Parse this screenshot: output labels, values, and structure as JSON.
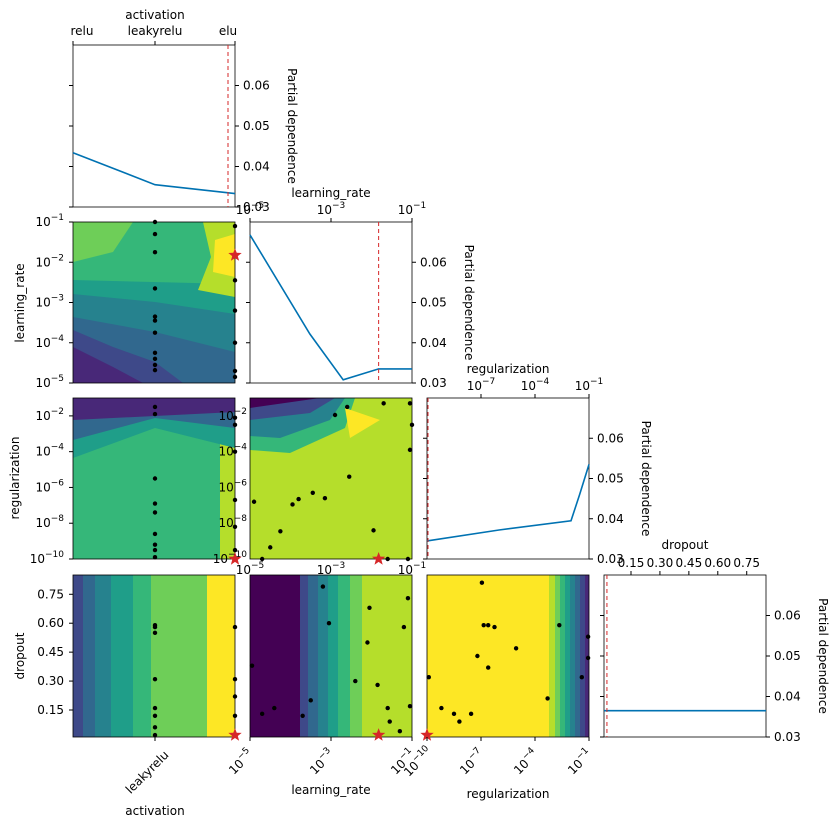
{
  "chart_data": {
    "type": "partial-dependence-matrix",
    "dimensions": [
      "activation",
      "learning_rate",
      "regularization",
      "dropout"
    ],
    "pd_label": "Partial dependence",
    "pd_ticks": [
      "0.03",
      "0.04",
      "0.05",
      "0.06"
    ],
    "pd_ylim": [
      0.03,
      0.07
    ],
    "activation_ticks": [
      "relu",
      "leakyrelu",
      "elu"
    ],
    "lr_tick_labels": [
      "10−5",
      "10−3",
      "10−1"
    ],
    "reg_tick_labels": [
      "10−10",
      "10−7",
      "10−4",
      "10−1"
    ],
    "reg_row_ticks": [
      "10−10",
      "10−8",
      "10−6",
      "10−4",
      "10−2"
    ],
    "lr_row_ticks": [
      "10−5",
      "10−4",
      "10−3",
      "10−2",
      "10−1"
    ],
    "dropout_ticks": [
      "0.15",
      "0.30",
      "0.45",
      "0.60",
      "0.75"
    ],
    "best": {
      "activation": "elu",
      "learning_rate": 0.015,
      "regularization": 1e-10,
      "dropout": 0.02
    },
    "diagonal": [
      {
        "dimension": "activation",
        "x": [
          0,
          1,
          2
        ],
        "y": [
          0.0434,
          0.0355,
          0.0333
        ]
      },
      {
        "dimension": "learning_rate",
        "x": [
          1e-05,
          0.0003,
          0.002,
          0.015,
          0.1
        ],
        "y": [
          0.0668,
          0.0422,
          0.0308,
          0.0335,
          0.0335
        ]
      },
      {
        "dimension": "regularization",
        "x": [
          1e-10,
          1e-06,
          0.01,
          0.03,
          0.1
        ],
        "y": [
          0.0345,
          0.0372,
          0.0395,
          0.046,
          0.0535
        ]
      },
      {
        "dimension": "dropout",
        "x": [
          0.01,
          0.85
        ],
        "y": [
          0.0365,
          0.0365
        ]
      }
    ],
    "samples": {
      "act_lr": [
        [
          1,
          -1
        ],
        [
          1,
          -1.3
        ],
        [
          1,
          -1.75
        ],
        [
          1,
          -2.65
        ],
        [
          1,
          -3.35
        ],
        [
          1,
          -3.45
        ],
        [
          1,
          -3.75
        ],
        [
          1,
          -4.25
        ],
        [
          1,
          -4.4
        ],
        [
          1,
          -4.55
        ],
        [
          1,
          -4.68
        ],
        [
          2,
          -1.1
        ],
        [
          2,
          -2.45
        ],
        [
          2,
          -3.2
        ],
        [
          2,
          -4.0
        ],
        [
          2,
          -4.7
        ],
        [
          2,
          -4.85
        ]
      ],
      "act_reg": [
        [
          1,
          -1.5
        ],
        [
          1,
          -1.9
        ],
        [
          1,
          -5.5
        ],
        [
          1,
          -6.9
        ],
        [
          1,
          -7.4
        ],
        [
          1,
          -8.6
        ],
        [
          1,
          -9.2
        ],
        [
          1,
          -9.5
        ],
        [
          1,
          -9.9
        ],
        [
          2,
          -2.1
        ],
        [
          2,
          -2.5
        ],
        [
          2,
          -4.0
        ],
        [
          2,
          -6.7
        ],
        [
          2,
          -8.2
        ],
        [
          2,
          -9.5
        ]
      ],
      "lr_reg": [
        [
          -2.9,
          -1.95
        ],
        [
          -2.6,
          -1.5
        ],
        [
          -1.7,
          -1.3
        ],
        [
          -1.05,
          -1.3
        ],
        [
          -1.0,
          -2.5
        ],
        [
          -2.55,
          -5.4
        ],
        [
          -3.45,
          -6.3
        ],
        [
          -3.8,
          -6.65
        ],
        [
          -3.95,
          -6.95
        ],
        [
          -3.15,
          -6.6
        ],
        [
          -4.25,
          -8.45
        ],
        [
          -4.5,
          -9.35
        ],
        [
          -4.7,
          -10.0
        ],
        [
          -4.9,
          -6.8
        ],
        [
          -1.05,
          -3.9
        ],
        [
          -1.95,
          -8.4
        ],
        [
          -1.6,
          -10.0
        ],
        [
          -1.1,
          -10.0
        ]
      ],
      "act_drop": [
        [
          1,
          0.55
        ],
        [
          1,
          0.58
        ],
        [
          1,
          0.59
        ],
        [
          1,
          0.31
        ],
        [
          1,
          0.16
        ],
        [
          1,
          0.12
        ],
        [
          1,
          0.06
        ],
        [
          1,
          0.02
        ],
        [
          2,
          0.58
        ],
        [
          2,
          0.31
        ],
        [
          2,
          0.22
        ],
        [
          2,
          0.12
        ],
        [
          2,
          0.02
        ]
      ],
      "lr_drop": [
        [
          -4.95,
          0.38
        ],
        [
          -4.7,
          0.13
        ],
        [
          -4.4,
          0.16
        ],
        [
          -3.7,
          0.12
        ],
        [
          -3.5,
          0.2
        ],
        [
          -3.2,
          0.79
        ],
        [
          -3.05,
          0.6
        ],
        [
          -2.4,
          0.3
        ],
        [
          -2.1,
          0.5
        ],
        [
          -2.05,
          0.68
        ],
        [
          -1.85,
          0.28
        ],
        [
          -1.6,
          0.16
        ],
        [
          -1.55,
          0.09
        ],
        [
          -1.2,
          0.58
        ],
        [
          -1.05,
          0.17
        ],
        [
          -1.1,
          0.73
        ],
        [
          -1.3,
          0.04
        ]
      ],
      "reg_drop": [
        [
          -9.9,
          0.32
        ],
        [
          -9.2,
          0.16
        ],
        [
          -8.5,
          0.13
        ],
        [
          -8.2,
          0.09
        ],
        [
          -7.55,
          0.13
        ],
        [
          -7.2,
          0.43
        ],
        [
          -6.95,
          0.81
        ],
        [
          -6.85,
          0.59
        ],
        [
          -6.6,
          0.59
        ],
        [
          -6.6,
          0.37
        ],
        [
          -6.25,
          0.58
        ],
        [
          -5.05,
          0.47
        ],
        [
          -3.3,
          0.21
        ],
        [
          -2.65,
          0.59
        ],
        [
          -1.4,
          0.32
        ],
        [
          -1.05,
          0.42
        ],
        [
          -1.05,
          0.53
        ]
      ]
    }
  }
}
